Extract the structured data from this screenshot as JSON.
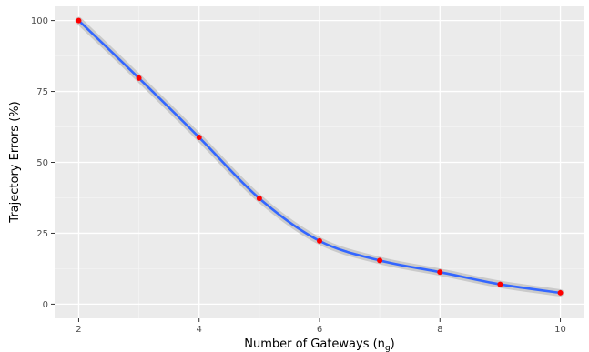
{
  "chart_data": {
    "type": "line",
    "xlabel": "Number of Gateways (n",
    "xlabel_sub": "g",
    "xlabel_close": ")",
    "ylabel": "Trajectory Errors (%)",
    "x": [
      2,
      3,
      4,
      5,
      6,
      7,
      8,
      9,
      10
    ],
    "series": [
      {
        "values": [
          100,
          79.7,
          58.8,
          37.3,
          22.3,
          15.4,
          11.3,
          7.0,
          4.0
        ]
      }
    ],
    "xlim": [
      1.6,
      10.4
    ],
    "ylim": [
      -5,
      105
    ],
    "x_ticks": [
      2,
      4,
      6,
      8,
      10
    ],
    "x_tick_labels": [
      "2",
      "4",
      "6",
      "8",
      "10"
    ],
    "y_ticks": [
      0,
      25,
      50,
      75,
      100
    ],
    "y_tick_labels": [
      "0",
      "25",
      "50",
      "75",
      "100"
    ],
    "grid": true,
    "colors": {
      "panel": "#ebebeb",
      "grid_major": "#ffffff",
      "line": "#3366ff",
      "band": "#c4c4c4",
      "point": "#ff0000"
    }
  }
}
